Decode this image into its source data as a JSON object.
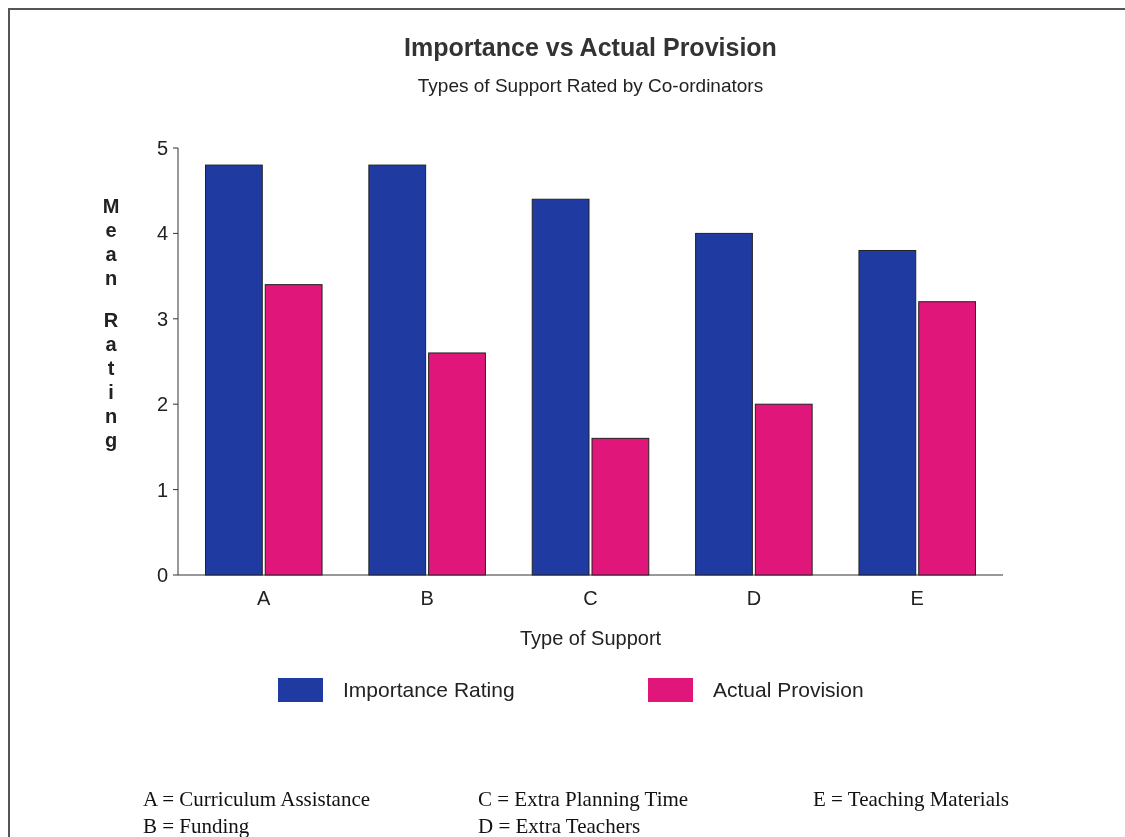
{
  "chart_data": {
    "type": "bar",
    "title": "Importance vs Actual Provision",
    "subtitle": "Types of Support Rated by Co-ordinators",
    "xlabel": "Type of Support",
    "ylabel": "Mean Rating",
    "categories": [
      "A",
      "B",
      "C",
      "D",
      "E"
    ],
    "series": [
      {
        "name": "Importance Rating",
        "color": "#1f3aa0",
        "values": [
          4.8,
          4.8,
          4.4,
          4.0,
          3.8
        ]
      },
      {
        "name": "Actual Provision",
        "color": "#e0167a",
        "values": [
          3.4,
          2.6,
          1.6,
          2.0,
          3.2
        ]
      }
    ],
    "ylim": [
      0,
      5
    ],
    "yticks": [
      0,
      1,
      2,
      3,
      4,
      5
    ],
    "legend": "bottom",
    "annotations": [
      "A = Curriculum Assistance",
      "B = Funding",
      "C = Extra Planning Time",
      "D = Extra Teachers",
      "E = Teaching Materials"
    ]
  }
}
